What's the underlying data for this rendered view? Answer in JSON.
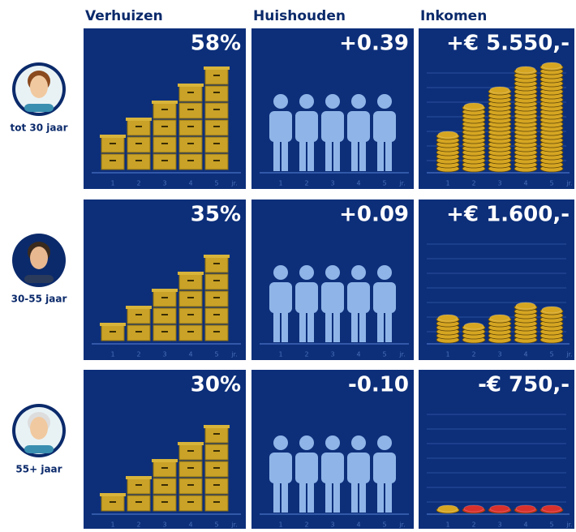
{
  "columns": [
    "Verhuizen",
    "Huishouden",
    "Inkomen"
  ],
  "axis_labels": [
    "1",
    "2",
    "3",
    "4",
    "5",
    "jr."
  ],
  "rows": [
    {
      "label": "tot 30 jaar",
      "verhuizen": "58%",
      "huishouden": "+0.39",
      "inkomen": "+€ 5.550,-",
      "boxes": [
        2,
        3,
        4,
        5,
        6
      ],
      "coins": [
        9,
        16,
        20,
        25,
        26
      ],
      "coin_colors": [
        "#d6a622",
        "#d6a622",
        "#d6a622",
        "#d6a622",
        "#d6a622"
      ]
    },
    {
      "label": "30-55 jaar",
      "verhuizen": "35%",
      "huishouden": "+0.09",
      "inkomen": "+€ 1.600,-",
      "boxes": [
        1,
        2,
        3,
        4,
        5
      ],
      "coins": [
        6,
        4,
        6,
        9,
        8
      ],
      "coin_colors": [
        "#d6a622",
        "#d6a622",
        "#d6a622",
        "#d6a622",
        "#d6a622"
      ]
    },
    {
      "label": "55+ jaar",
      "verhuizen": "30%",
      "huishouden": "-0.10",
      "inkomen": "-€ 750,-",
      "boxes": [
        1,
        2,
        3,
        4,
        5
      ],
      "coins": [
        1,
        1,
        1,
        1,
        1
      ],
      "coin_colors": [
        "#d6a622",
        "#d9302c",
        "#d9302c",
        "#d9302c",
        "#d9302c"
      ]
    }
  ]
}
